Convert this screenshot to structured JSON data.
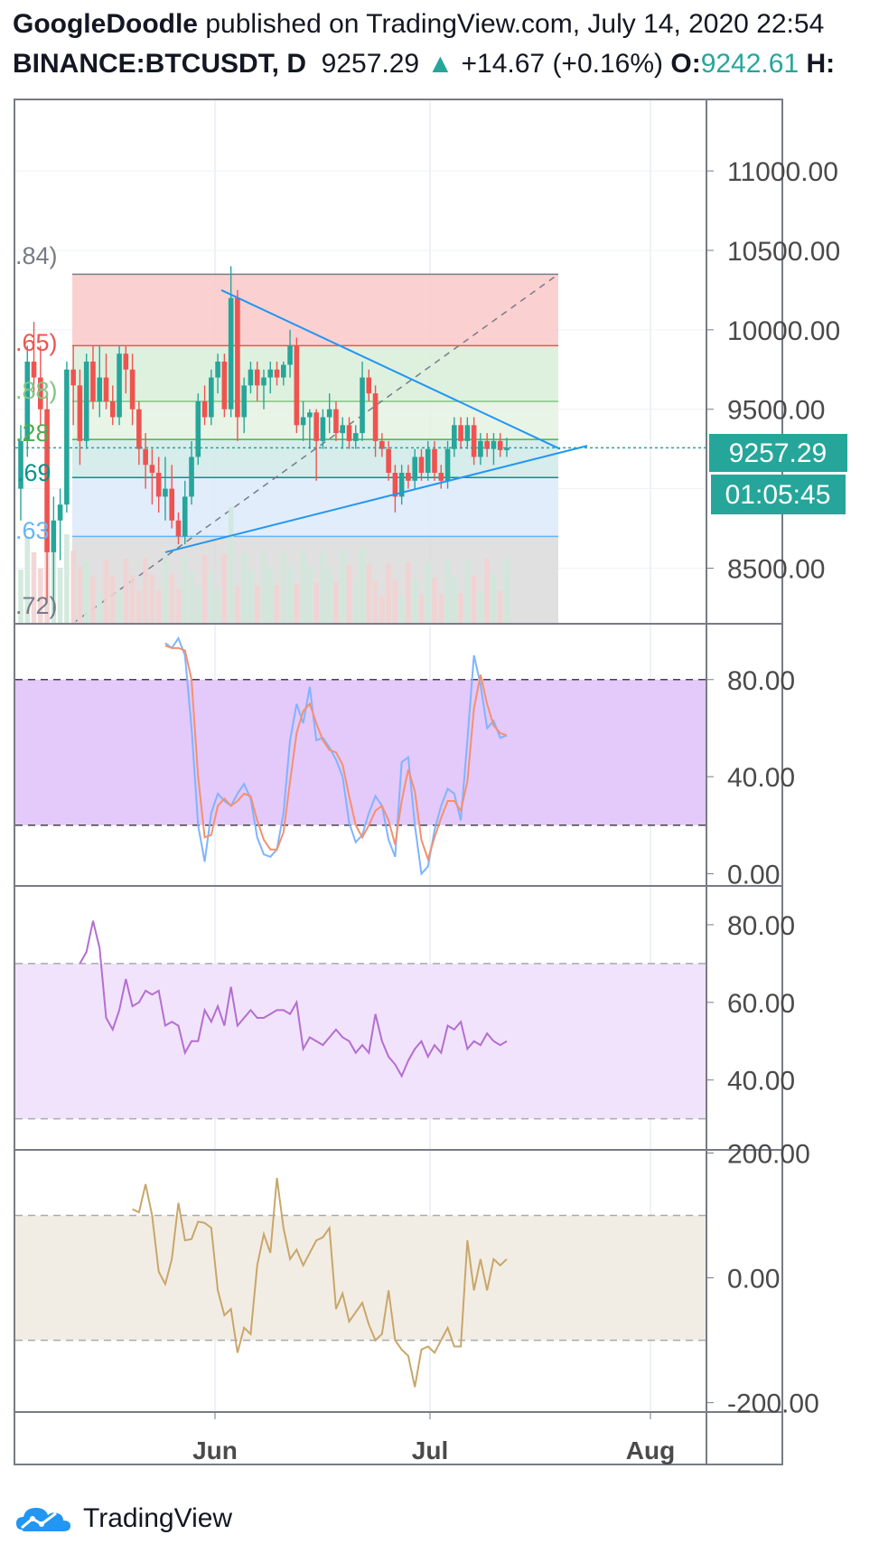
{
  "header": {
    "author": "GoogleDoodle",
    "published_text": "published on TradingView.com, July 14, 2020 22:54",
    "symbol": "BINANCE:BTCUSDT, D",
    "price": "9257.29",
    "change_arrow": "▲",
    "change": "+14.67 (+0.16%)",
    "open_label": "O:",
    "open_value": "9242.61",
    "high_label": "H:"
  },
  "price_axis": {
    "ticks": [
      "11000.00",
      "10500.00",
      "10000.00",
      "9500.00",
      "8500.00"
    ],
    "current_price": "9257.29",
    "countdown": "01:05:45"
  },
  "fib_labels": [
    ".84)",
    ".65)",
    ".88)",
    ".28",
    ".69",
    ".63",
    ".72)"
  ],
  "stoch_axis": {
    "ticks": [
      "80.00",
      "40.00",
      "0.00"
    ]
  },
  "rsi_axis": {
    "ticks": [
      "80.00",
      "60.00",
      "40.00"
    ]
  },
  "cci_axis": {
    "ticks": [
      "200.00",
      "0.00",
      "-200.00"
    ]
  },
  "time_axis": {
    "labels": [
      "Jun",
      "Jul",
      "Aug"
    ]
  },
  "footer": {
    "brand": "TradingView",
    "logo_icon": "tradingview-logo-icon"
  },
  "colors": {
    "up": "#26a69a",
    "down": "#ef5350",
    "accent": "#2196f3",
    "stoch_k": "#7fb4ff",
    "stoch_d": "#f4916e",
    "rsi": "#b46ed1",
    "cci": "#c9a66b"
  },
  "chart_data": [
    {
      "type": "candlestick",
      "title": "BINANCE:BTCUSDT, D",
      "x_range": [
        "2020-05-05",
        "2020-08-06"
      ],
      "ylim": [
        8150,
        11450
      ],
      "candles": [
        [
          9000,
          9400,
          8800,
          9300
        ],
        [
          9300,
          9900,
          9200,
          9800
        ],
        [
          9800,
          10050,
          9600,
          9700
        ],
        [
          9700,
          9900,
          9400,
          9500
        ],
        [
          9500,
          9600,
          8300,
          8600
        ],
        [
          8600,
          8950,
          8200,
          8800
        ],
        [
          8800,
          9000,
          8550,
          8900
        ],
        [
          8900,
          9800,
          8850,
          9750
        ],
        [
          9750,
          9900,
          9400,
          9650
        ],
        [
          9650,
          9750,
          9150,
          9300
        ],
        [
          9300,
          9850,
          9250,
          9800
        ],
        [
          9800,
          9900,
          9500,
          9550
        ],
        [
          9550,
          9900,
          9450,
          9700
        ],
        [
          9700,
          9850,
          9500,
          9550
        ],
        [
          9550,
          9650,
          9400,
          9450
        ],
        [
          9450,
          9900,
          9400,
          9850
        ],
        [
          9850,
          9900,
          9600,
          9750
        ],
        [
          9750,
          9850,
          9400,
          9500
        ],
        [
          9500,
          9550,
          9150,
          9250
        ],
        [
          9250,
          9350,
          9000,
          9150
        ],
        [
          9150,
          9250,
          8900,
          9100
        ],
        [
          9100,
          9200,
          8850,
          8950
        ],
        [
          8950,
          9200,
          8800,
          9000
        ],
        [
          9000,
          9150,
          8750,
          8800
        ],
        [
          8800,
          8850,
          8650,
          8700
        ],
        [
          8700,
          9050,
          8650,
          8950
        ],
        [
          8950,
          9300,
          8900,
          9200
        ],
        [
          9200,
          9600,
          9150,
          9550
        ],
        [
          9550,
          9650,
          9400,
          9450
        ],
        [
          9450,
          9750,
          9400,
          9700
        ],
        [
          9700,
          9850,
          9600,
          9800
        ],
        [
          9800,
          9850,
          9450,
          9500
        ],
        [
          9500,
          10400,
          9450,
          10200
        ],
        [
          10200,
          10250,
          9300,
          9450
        ],
        [
          9450,
          9700,
          9350,
          9650
        ],
        [
          9650,
          9800,
          9600,
          9750
        ],
        [
          9750,
          9800,
          9550,
          9650
        ],
        [
          9650,
          9750,
          9500,
          9700
        ],
        [
          9700,
          9800,
          9600,
          9750
        ],
        [
          9750,
          9800,
          9650,
          9700
        ],
        [
          9700,
          9800,
          9650,
          9780
        ],
        [
          9780,
          10000,
          9700,
          9900
        ],
        [
          9900,
          9950,
          9350,
          9400
        ],
        [
          9400,
          9550,
          9300,
          9450
        ],
        [
          9450,
          9500,
          9250,
          9480
        ],
        [
          9480,
          9500,
          9050,
          9300
        ],
        [
          9300,
          9500,
          9250,
          9450
        ],
        [
          9450,
          9600,
          9350,
          9500
        ],
        [
          9500,
          9550,
          9300,
          9350
        ],
        [
          9350,
          9450,
          9250,
          9400
        ],
        [
          9400,
          9450,
          9250,
          9300
        ],
        [
          9300,
          9400,
          9250,
          9350
        ],
        [
          9350,
          9800,
          9300,
          9700
        ],
        [
          9700,
          9750,
          9550,
          9600
        ],
        [
          9600,
          9650,
          9200,
          9300
        ],
        [
          9300,
          9350,
          9200,
          9250
        ],
        [
          9250,
          9300,
          9050,
          9100
        ],
        [
          9100,
          9150,
          8850,
          8950
        ],
        [
          8950,
          9150,
          8900,
          9100
        ],
        [
          9100,
          9150,
          9000,
          9050
        ],
        [
          9050,
          9250,
          9000,
          9200
        ],
        [
          9200,
          9250,
          9050,
          9100
        ],
        [
          9100,
          9300,
          9050,
          9250
        ],
        [
          9250,
          9300,
          9050,
          9100
        ],
        [
          9100,
          9150,
          9000,
          9050
        ],
        [
          9050,
          9300,
          9000,
          9250
        ],
        [
          9250,
          9450,
          9200,
          9400
        ],
        [
          9400,
          9450,
          9250,
          9300
        ],
        [
          9300,
          9450,
          9250,
          9400
        ],
        [
          9400,
          9450,
          9150,
          9200
        ],
        [
          9200,
          9350,
          9150,
          9300
        ],
        [
          9300,
          9350,
          9200,
          9250
        ],
        [
          9250,
          9350,
          9150,
          9300
        ],
        [
          9300,
          9350,
          9200,
          9243
        ],
        [
          9242.61,
          9320,
          9200,
          9257.29
        ]
      ],
      "drawings": {
        "fib_levels": [
          10350,
          9900,
          9550,
          9310,
          9070,
          8700,
          8150
        ],
        "triangle_upper": [
          [
            1,
            10250
          ],
          [
            25,
            9300
          ]
        ],
        "triangle_lower": [
          [
            1,
            8650
          ],
          [
            25,
            9300
          ]
        ]
      }
    },
    {
      "type": "line",
      "title": "",
      "ylim": [
        -5,
        103
      ],
      "bands": [
        20,
        80
      ],
      "series": [
        {
          "values": [
            95,
            93,
            97,
            90,
            60,
            20,
            5,
            25,
            33,
            30,
            28,
            33,
            37,
            31,
            15,
            8,
            7,
            10,
            25,
            55,
            70,
            62,
            77,
            55,
            56,
            52,
            47,
            40,
            21,
            13,
            16,
            25,
            32,
            28,
            14,
            7,
            46,
            48,
            20,
            0,
            3,
            18,
            28,
            35,
            33,
            22,
            55,
            90,
            78,
            60,
            63,
            56,
            57
          ]
        },
        {
          "values": [
            94,
            93,
            93,
            92,
            80,
            40,
            15,
            16,
            28,
            31,
            28,
            30,
            33,
            32,
            22,
            14,
            10,
            10,
            17,
            38,
            58,
            67,
            70,
            62,
            55,
            51,
            50,
            45,
            32,
            20,
            15,
            20,
            26,
            28,
            22,
            12,
            30,
            43,
            34,
            14,
            6,
            15,
            23,
            30,
            30,
            26,
            38,
            68,
            82,
            70,
            61,
            58,
            57
          ]
        }
      ]
    },
    {
      "type": "line",
      "title": "",
      "ylim": [
        22,
        90
      ],
      "bands": [
        30,
        70
      ],
      "series": [
        {
          "values": [
            70,
            73,
            81,
            74,
            56,
            53,
            58,
            66,
            59,
            60,
            63,
            62,
            63,
            54,
            55,
            54,
            47,
            50,
            50,
            58,
            55,
            59,
            54,
            64,
            54,
            56,
            58,
            56,
            56,
            57,
            58,
            58,
            57,
            60,
            48,
            51,
            50,
            49,
            51,
            53,
            51,
            50,
            47,
            49,
            47,
            57,
            50,
            46,
            44,
            41,
            45,
            48,
            50,
            46,
            49,
            47,
            54,
            53,
            55,
            48,
            50,
            49,
            52,
            50,
            49,
            50
          ]
        }
      ]
    },
    {
      "type": "line",
      "title": "",
      "ylim": [
        -215,
        205
      ],
      "bands": [
        -100,
        100
      ],
      "series": [
        {
          "values": [
            110,
            105,
            150,
            100,
            10,
            -10,
            30,
            120,
            60,
            62,
            90,
            88,
            80,
            -20,
            -60,
            -50,
            -120,
            -80,
            -90,
            20,
            70,
            40,
            160,
            80,
            30,
            45,
            20,
            40,
            60,
            65,
            80,
            -50,
            -25,
            -70,
            -55,
            -40,
            -75,
            -100,
            -90,
            -20,
            -100,
            -115,
            -125,
            -175,
            -115,
            -110,
            -120,
            -100,
            -80,
            -110,
            -110,
            60,
            -20,
            30,
            -20,
            30,
            20,
            30
          ]
        }
      ]
    }
  ]
}
